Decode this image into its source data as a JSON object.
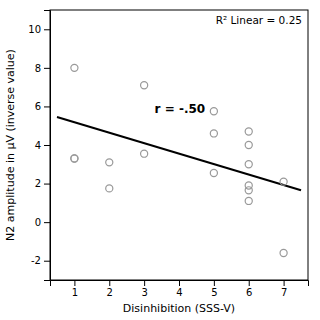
{
  "chart_data": {
    "type": "scatter",
    "xlabel": "Disinhibition (SSS-V)",
    "ylabel": "N2 amplitude in μV (inverse value)",
    "series": [
      {
        "type": "scatter",
        "marker": "circle",
        "color": "#999999",
        "x": [
          1,
          1,
          1,
          2,
          2,
          3,
          3,
          5,
          5,
          5,
          6,
          6,
          6,
          6,
          6,
          6,
          7,
          7
        ],
        "values": [
          8.0,
          3.3,
          3.3,
          3.1,
          1.75,
          7.1,
          3.55,
          5.75,
          4.6,
          2.55,
          4.7,
          4.0,
          3.0,
          1.9,
          1.65,
          1.1,
          2.1,
          -1.6
        ]
      },
      {
        "type": "line",
        "line_style": "solid",
        "color": "#000000",
        "x": [
          0.5,
          7.5
        ],
        "values": [
          5.45,
          1.65
        ]
      }
    ],
    "annotations": [
      {
        "text": "r = -.50",
        "x": 3.3,
        "y": 5.9
      },
      {
        "text": "R² Linear = 0.25"
      }
    ],
    "xlim": [
      0.3,
      7.7
    ],
    "ylim": [
      -3,
      11
    ],
    "xticks": [
      1,
      2,
      3,
      4,
      5,
      6,
      7
    ],
    "yticks": [
      -2,
      0,
      2,
      4,
      6,
      8,
      10
    ],
    "grid": false
  }
}
